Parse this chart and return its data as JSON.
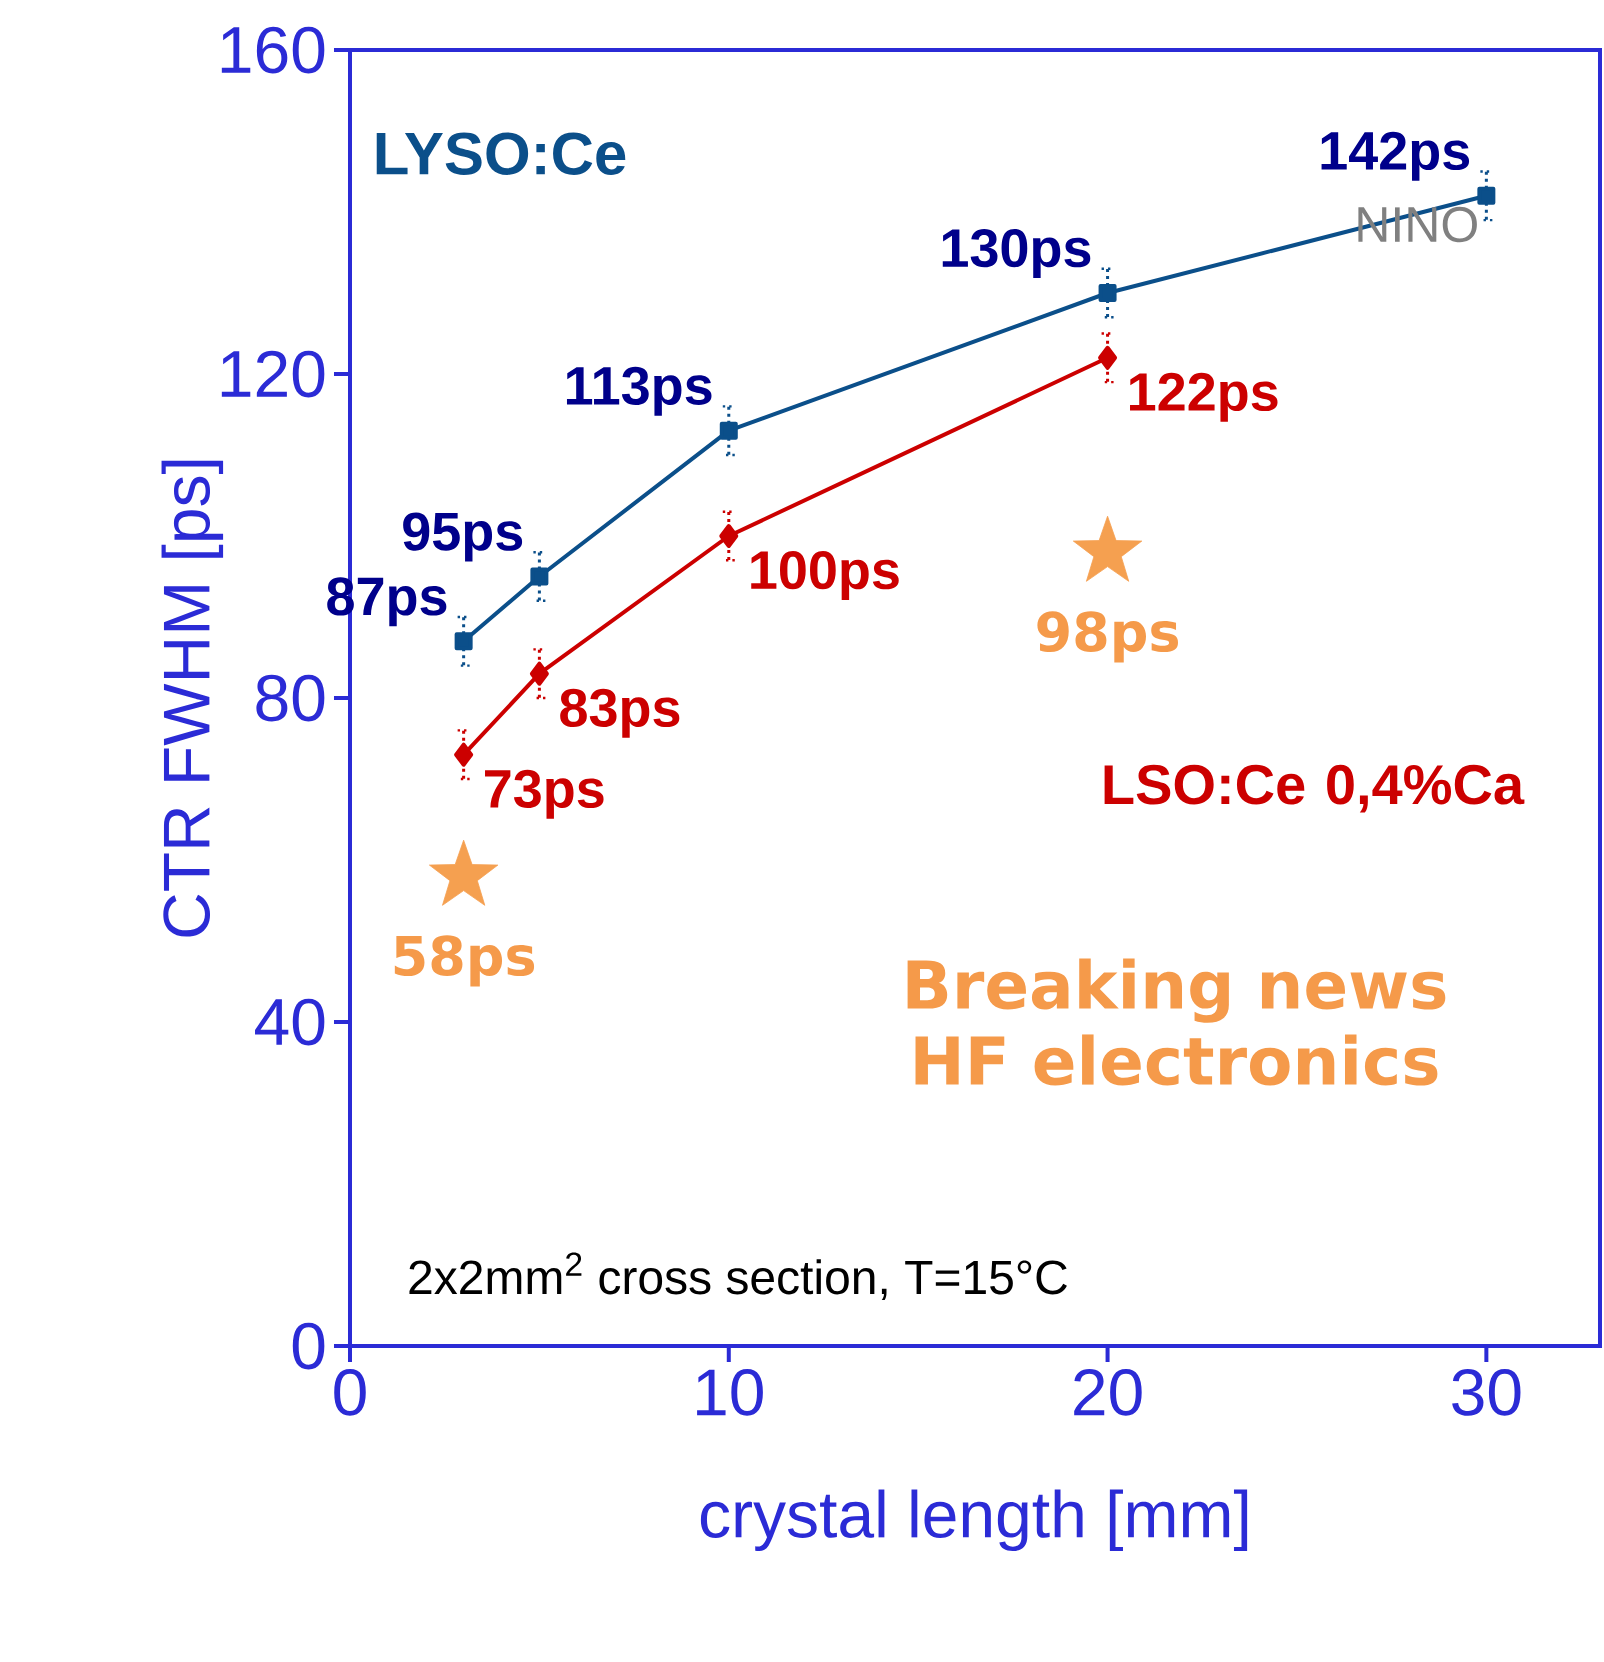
{
  "chart_data": {
    "type": "line",
    "xlabel": "crystal length [mm]",
    "ylabel": "CTR FWHM [ps]",
    "xlim": [
      0,
      33
    ],
    "ylim": [
      0,
      160
    ],
    "xticks": [
      0,
      10,
      20,
      30
    ],
    "yticks": [
      0,
      40,
      80,
      120,
      160
    ],
    "series": [
      {
        "name": "LYSO:Ce",
        "color": "#0b4f8a",
        "x": [
          3,
          5,
          10,
          20,
          30
        ],
        "values": [
          87,
          95,
          113,
          130,
          142
        ],
        "errors": [
          3,
          3,
          3,
          3,
          3
        ],
        "marker": "square",
        "value_labels": [
          "87ps",
          "95ps",
          "113ps",
          "130ps",
          "142ps"
        ]
      },
      {
        "name": "LSO:Ce 0,4%Ca",
        "color": "#cc0000",
        "x": [
          3,
          5,
          10,
          20
        ],
        "values": [
          73,
          83,
          100,
          122
        ],
        "errors": [
          3,
          3,
          3,
          3
        ],
        "marker": "diamond",
        "value_labels": [
          "73ps",
          "83ps",
          "100ps",
          "122ps"
        ]
      },
      {
        "name": "Breaking news HF electronics",
        "type": "scatter",
        "color": "#f5a050",
        "x": [
          3,
          20
        ],
        "values": [
          58,
          98
        ],
        "marker": "star",
        "value_labels": [
          "58ps",
          "98ps"
        ]
      }
    ],
    "annotations": [
      {
        "text": "NINO",
        "x": 30,
        "y": 142
      },
      "2x2mm$^{2}$ cross section, T=15°C"
    ]
  }
}
